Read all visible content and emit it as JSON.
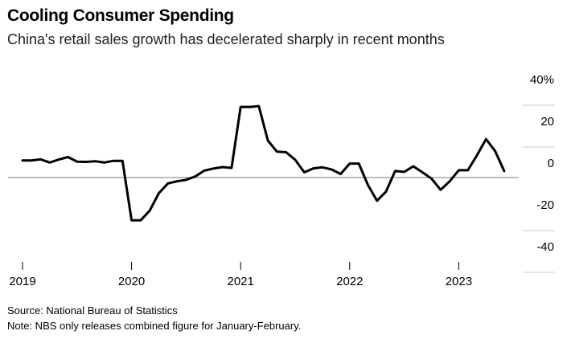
{
  "header": {
    "title": "Cooling Consumer Spending",
    "subtitle": "China's retail sales growth has decelerated sharply in recent months"
  },
  "footer": {
    "source": "Source: National Bureau of Statistics",
    "note": "Note: NBS only releases combined figure for January-February."
  },
  "chart_data": {
    "type": "line",
    "title": "Cooling Consumer Spending",
    "subtitle": "China's retail sales growth has decelerated sharply in recent months",
    "x_axis": {
      "ticks": [
        "2019",
        "2020",
        "2021",
        "2022",
        "2023"
      ]
    },
    "y_axis": {
      "ticks": [
        "40%",
        "20",
        "0",
        "-20",
        "-40"
      ],
      "tick_values": [
        40,
        20,
        0,
        -20,
        -40
      ],
      "range": [
        -40,
        40
      ],
      "side": "right"
    },
    "zero_line": true,
    "grid": false,
    "line_color": "#000000",
    "series": [
      {
        "points": [
          {
            "x": "2019-01",
            "y": 8.2
          },
          {
            "x": "2019-02",
            "y": 8.2
          },
          {
            "x": "2019-03",
            "y": 8.7
          },
          {
            "x": "2019-04",
            "y": 7.2
          },
          {
            "x": "2019-05",
            "y": 8.6
          },
          {
            "x": "2019-06",
            "y": 9.8
          },
          {
            "x": "2019-07",
            "y": 7.6
          },
          {
            "x": "2019-08",
            "y": 7.5
          },
          {
            "x": "2019-09",
            "y": 7.8
          },
          {
            "x": "2019-10",
            "y": 7.2
          },
          {
            "x": "2019-11",
            "y": 8.0
          },
          {
            "x": "2019-12",
            "y": 8.0
          },
          {
            "x": "2020-01",
            "y": -20.5
          },
          {
            "x": "2020-02",
            "y": -20.5
          },
          {
            "x": "2020-03",
            "y": -15.8
          },
          {
            "x": "2020-04",
            "y": -7.5
          },
          {
            "x": "2020-05",
            "y": -2.8
          },
          {
            "x": "2020-06",
            "y": -1.8
          },
          {
            "x": "2020-07",
            "y": -1.1
          },
          {
            "x": "2020-08",
            "y": 0.5
          },
          {
            "x": "2020-09",
            "y": 3.3
          },
          {
            "x": "2020-10",
            "y": 4.3
          },
          {
            "x": "2020-11",
            "y": 5.0
          },
          {
            "x": "2020-12",
            "y": 4.6
          },
          {
            "x": "2021-01",
            "y": 33.8
          },
          {
            "x": "2021-02",
            "y": 33.8
          },
          {
            "x": "2021-03",
            "y": 34.2
          },
          {
            "x": "2021-04",
            "y": 17.7
          },
          {
            "x": "2021-05",
            "y": 12.4
          },
          {
            "x": "2021-06",
            "y": 12.1
          },
          {
            "x": "2021-07",
            "y": 8.5
          },
          {
            "x": "2021-08",
            "y": 2.5
          },
          {
            "x": "2021-09",
            "y": 4.4
          },
          {
            "x": "2021-10",
            "y": 4.9
          },
          {
            "x": "2021-11",
            "y": 3.9
          },
          {
            "x": "2021-12",
            "y": 1.7
          },
          {
            "x": "2022-01",
            "y": 6.7
          },
          {
            "x": "2022-02",
            "y": 6.7
          },
          {
            "x": "2022-03",
            "y": -3.5
          },
          {
            "x": "2022-04",
            "y": -11.1
          },
          {
            "x": "2022-05",
            "y": -6.7
          },
          {
            "x": "2022-06",
            "y": 3.1
          },
          {
            "x": "2022-07",
            "y": 2.7
          },
          {
            "x": "2022-08",
            "y": 5.4
          },
          {
            "x": "2022-09",
            "y": 2.5
          },
          {
            "x": "2022-10",
            "y": -0.5
          },
          {
            "x": "2022-11",
            "y": -5.9
          },
          {
            "x": "2022-12",
            "y": -1.8
          },
          {
            "x": "2023-01",
            "y": 3.5
          },
          {
            "x": "2023-02",
            "y": 3.5
          },
          {
            "x": "2023-03",
            "y": 10.6
          },
          {
            "x": "2023-04",
            "y": 18.4
          },
          {
            "x": "2023-05",
            "y": 12.7
          },
          {
            "x": "2023-06",
            "y": 3.1
          }
        ]
      }
    ]
  }
}
